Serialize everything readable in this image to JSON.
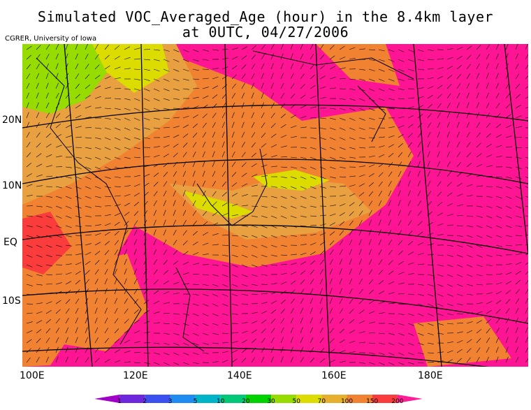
{
  "title": {
    "line1": "Simulated VOC_Averaged_Age (hour) in the 8.4km layer",
    "line2": "at 0UTC, 04/27/2006"
  },
  "credit": "CGRER, University of Iowa",
  "lat_labels": [
    "20N",
    "10N",
    "EQ",
    "10S"
  ],
  "lon_labels": [
    "100E",
    "120E",
    "140E",
    "160E",
    "180E"
  ],
  "colorbar": {
    "labels": [
      "1",
      "2",
      "3",
      "5",
      "10",
      "20",
      "30",
      "50",
      "70",
      "100",
      "150",
      "200"
    ],
    "colors": [
      "#a000c8",
      "#6e28dc",
      "#3c50f0",
      "#1e8cf0",
      "#00b4c8",
      "#00c878",
      "#00d200",
      "#96dc00",
      "#dcdc00",
      "#e6af2d",
      "#f08232",
      "#fa3c3c",
      "#ff1e96"
    ]
  },
  "fill_colors": {
    "background": "#ff1493",
    "orange": "#f08232",
    "light_orange": "#e8a040",
    "yellow": "#dcdc00",
    "green": "#96dc00",
    "red": "#fa3c3c"
  }
}
